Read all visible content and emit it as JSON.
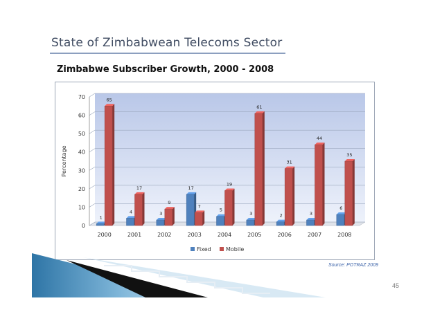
{
  "slide": {
    "title": "State of Zimbabwean Telecoms Sector",
    "page_number": "45",
    "source": "Source: POTRAZ 2009",
    "accent_color": "#8c9fbf"
  },
  "chart_data": {
    "type": "bar",
    "title": "Zimbabwe Subscriber Growth, 2000 - 2008",
    "xlabel": "",
    "ylabel": "Percentage",
    "ylim": [
      0,
      70
    ],
    "yticks": [
      0,
      10,
      20,
      30,
      40,
      50,
      60,
      70
    ],
    "grid": true,
    "legend_position": "bottom",
    "categories": [
      "2000",
      "2001",
      "2002",
      "2003",
      "2004",
      "2005",
      "2006",
      "2007",
      "2008"
    ],
    "series": [
      {
        "name": "Fixed",
        "color": "#4f81bd",
        "values": [
          1,
          4,
          3,
          17,
          5,
          3,
          2,
          3,
          6
        ]
      },
      {
        "name": "Mobile",
        "color": "#c0504d",
        "values": [
          65,
          17,
          9,
          7,
          19,
          61,
          31,
          44,
          35
        ]
      }
    ]
  }
}
